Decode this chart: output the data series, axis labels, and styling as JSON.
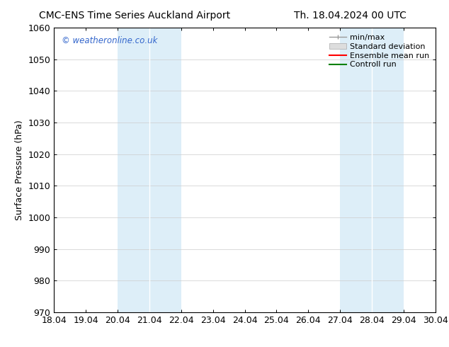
{
  "title_left": "CMC-ENS Time Series Auckland Airport",
  "title_right": "Th. 18.04.2024 00 UTC",
  "ylabel": "Surface Pressure (hPa)",
  "xlabel_ticks": [
    "18.04",
    "19.04",
    "20.04",
    "21.04",
    "22.04",
    "23.04",
    "24.04",
    "25.04",
    "26.04",
    "27.04",
    "28.04",
    "29.04",
    "30.04"
  ],
  "xlim": [
    18.04,
    30.04
  ],
  "ylim": [
    970,
    1060
  ],
  "yticks": [
    970,
    980,
    990,
    1000,
    1010,
    1020,
    1030,
    1040,
    1050,
    1060
  ],
  "shaded_bands": [
    {
      "xmin": 20.04,
      "xmax": 22.04
    },
    {
      "xmin": 27.04,
      "xmax": 29.04
    }
  ],
  "shade_color": "#ddeef8",
  "watermark_text": "© weatheronline.co.uk",
  "watermark_color": "#3366CC",
  "bg_color": "#ffffff",
  "font_size": 9,
  "title_fontsize": 10,
  "legend_fontsize": 8
}
